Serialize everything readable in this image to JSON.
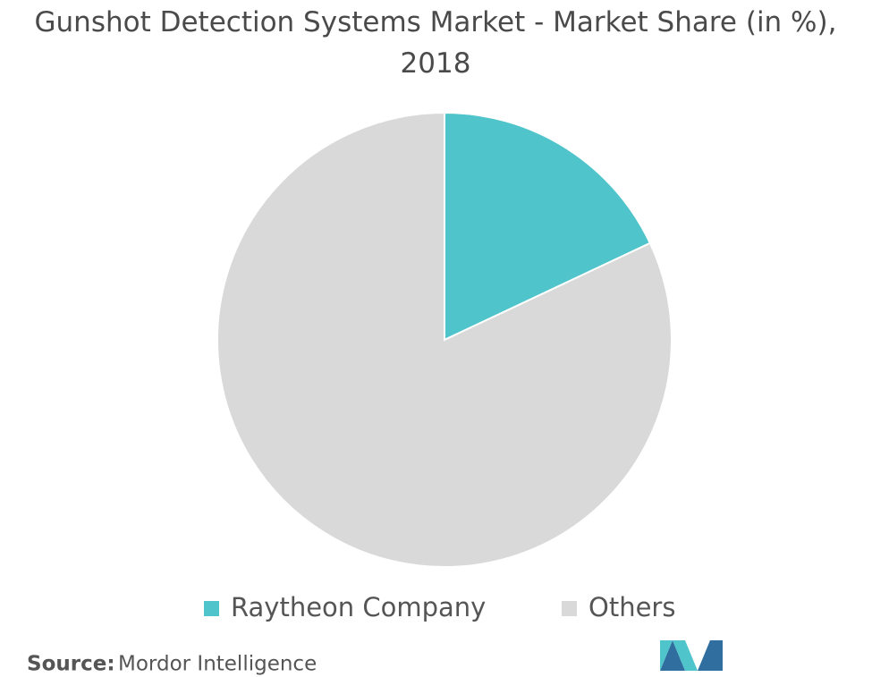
{
  "chart_data": {
    "type": "pie",
    "title": "Gunshot Detection Systems Market - Market Share (in %), 2018",
    "categories": [
      "Raytheon Company",
      "Others"
    ],
    "values": [
      18,
      82
    ],
    "colors": [
      "#4fc4cb",
      "#d9d9d9"
    ],
    "source_label": "Source:",
    "source": "Mordor Intelligence"
  }
}
